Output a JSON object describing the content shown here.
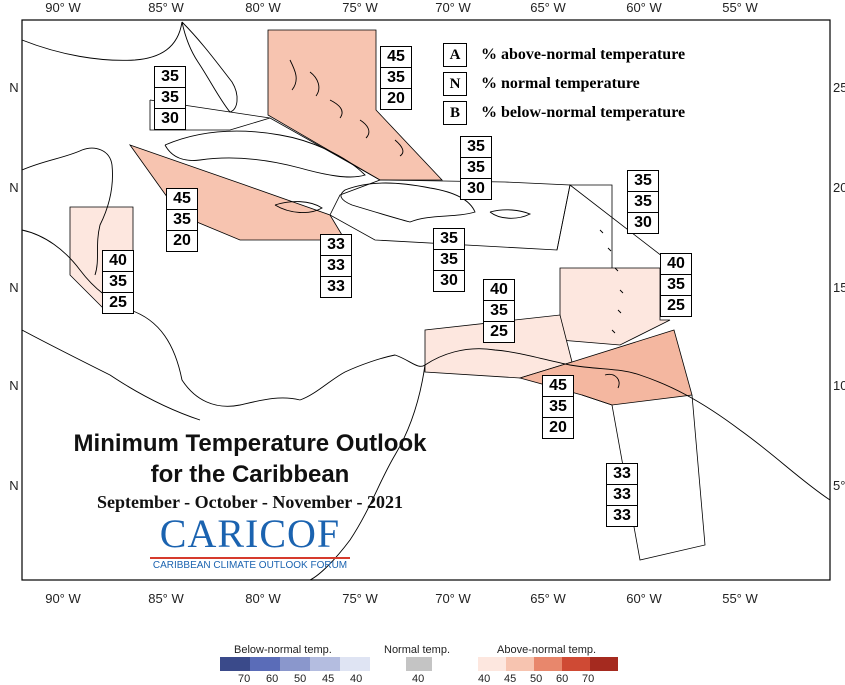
{
  "map": {
    "title_line1": "Minimum Temperature Outlook",
    "title_line2": "for the Caribbean",
    "subtitle": "September - October - November - 2021",
    "logo_main": "CARICOF",
    "logo_sub": "CARIBBEAN CLIMATE OUTLOOK FORUM",
    "lon_labels": [
      "90° W",
      "85° W",
      "80° W",
      "75° W",
      "70° W",
      "65° W",
      "60° W",
      "55° W"
    ],
    "lat_labels_left": [
      "N",
      "N",
      "N",
      "N",
      "N"
    ],
    "lat_labels_right": [
      "25",
      "20",
      "15",
      "10",
      "5°"
    ],
    "colors": {
      "above_40": "#fde7df",
      "above_45": "#f7c4b0",
      "below": "#5a6fb3",
      "normal": "#c0c0c0",
      "outline": "#000000"
    }
  },
  "key": {
    "A": "% above-normal temperature",
    "N": "% normal temperature",
    "B": "% below-normal temperature",
    "letters": [
      "A",
      "N",
      "B"
    ]
  },
  "zones": [
    {
      "name": "bahamas",
      "A": "45",
      "N": "35",
      "B": "20",
      "fill": "above_45"
    },
    {
      "name": "north-west-caribbean",
      "A": "35",
      "N": "35",
      "B": "30",
      "fill": "none"
    },
    {
      "name": "cayman-jamaica",
      "A": "45",
      "N": "35",
      "B": "20",
      "fill": "above_45"
    },
    {
      "name": "belize",
      "A": "40",
      "N": "35",
      "B": "25",
      "fill": "above_40"
    },
    {
      "name": "central-caribbean",
      "A": "33",
      "N": "33",
      "B": "33",
      "fill": "none"
    },
    {
      "name": "hispaniola",
      "A": "35",
      "N": "35",
      "B": "30",
      "fill": "none"
    },
    {
      "name": "turks-caicos",
      "A": "35",
      "N": "35",
      "B": "30",
      "fill": "none"
    },
    {
      "name": "leeward-islands",
      "A": "35",
      "N": "35",
      "B": "30",
      "fill": "none"
    },
    {
      "name": "windward-islands",
      "A": "40",
      "N": "35",
      "B": "25",
      "fill": "above_40"
    },
    {
      "name": "abc-islands",
      "A": "40",
      "N": "35",
      "B": "25",
      "fill": "above_40"
    },
    {
      "name": "trinidad",
      "A": "45",
      "N": "35",
      "B": "20",
      "fill": "above_45"
    },
    {
      "name": "guianas",
      "A": "33",
      "N": "33",
      "B": "33",
      "fill": "none"
    }
  ],
  "legend": {
    "below_label": "Below-normal temp.",
    "normal_label": "Normal temp.",
    "above_label": "Above-normal temp.",
    "below_values": [
      "70",
      "60",
      "50",
      "45",
      "40"
    ],
    "normal_value": "40",
    "above_values": [
      "40",
      "45",
      "50",
      "60",
      "70"
    ],
    "below_colors": [
      "#3a4a8a",
      "#5a6cb8",
      "#8a97cc",
      "#b4bde0",
      "#dfe4f3"
    ],
    "normal_color": "#c4c4c4",
    "above_colors": [
      "#fde7df",
      "#f7c4b0",
      "#e8876c",
      "#cf4a34",
      "#a52a1f"
    ]
  }
}
